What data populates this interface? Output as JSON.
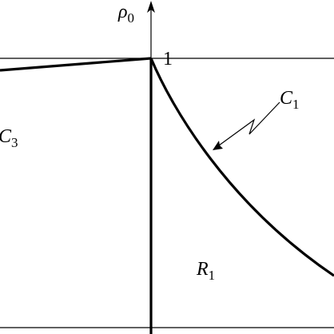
{
  "axis_label": {
    "main": "ρ",
    "sub": "0"
  },
  "value_label": "1",
  "curves": [
    {
      "main": "C",
      "sub": "1"
    },
    {
      "main": "C",
      "sub": "3"
    }
  ],
  "region": {
    "main": "R",
    "sub": "1"
  }
}
